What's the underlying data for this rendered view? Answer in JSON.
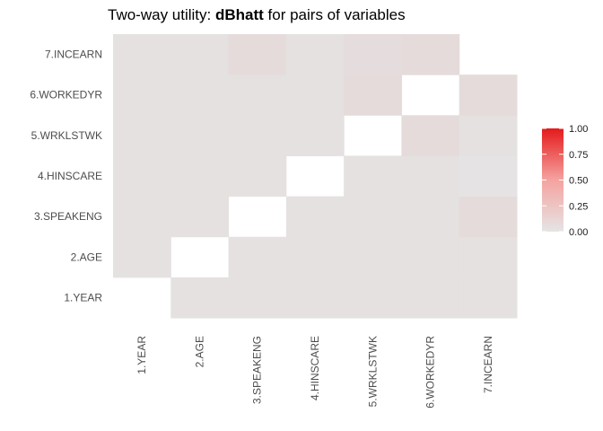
{
  "chart_data": {
    "type": "heatmap",
    "title_prefix": "Two-way utility: ",
    "title_metric": "dBhatt",
    "title_suffix": " for pairs of variables",
    "x_categories": [
      "1.YEAR",
      "2.AGE",
      "3.SPEAKENG",
      "4.HINSCARE",
      "5.WRKLSTWK",
      "6.WORKEDYR",
      "7.INCEARN"
    ],
    "y_categories": [
      "1.YEAR",
      "2.AGE",
      "3.SPEAKENG",
      "4.HINSCARE",
      "5.WRKLSTWK",
      "6.WORKEDYR",
      "7.INCEARN"
    ],
    "values": [
      [
        null,
        0.02,
        0.02,
        0.02,
        0.02,
        0.02,
        0.02
      ],
      [
        0.02,
        null,
        0.02,
        0.02,
        0.02,
        0.02,
        0.02
      ],
      [
        0.02,
        0.02,
        null,
        0.02,
        0.02,
        0.02,
        0.05
      ],
      [
        0.02,
        0.02,
        0.02,
        null,
        0.02,
        0.02,
        0.01
      ],
      [
        0.02,
        0.02,
        0.02,
        0.02,
        null,
        0.05,
        0.02
      ],
      [
        0.02,
        0.02,
        0.02,
        0.02,
        0.05,
        null,
        0.05
      ],
      [
        0.02,
        0.02,
        0.05,
        0.02,
        0.04,
        0.05,
        null
      ]
    ],
    "legend": {
      "position": "right",
      "min": 0,
      "max": 1,
      "ticks": [
        "0.00",
        "0.25",
        "0.50",
        "0.75",
        "1.00"
      ],
      "low_color": "#e5e5e5",
      "high_color": "#e41a1c"
    },
    "grid": false
  }
}
